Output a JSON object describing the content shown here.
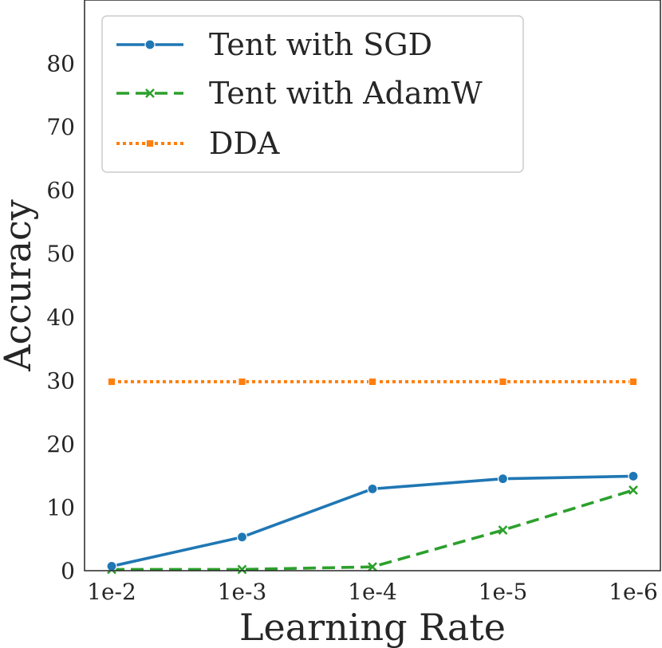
{
  "chart_data": {
    "type": "line",
    "title": "",
    "xlabel": "Learning Rate",
    "ylabel": "Accuracy",
    "categories": [
      "1e-2",
      "1e-3",
      "1e-4",
      "1e-5",
      "1e-6"
    ],
    "yticks": [
      "0",
      "10",
      "20",
      "30",
      "40",
      "50",
      "60",
      "70",
      "80"
    ],
    "ylim": [
      0,
      90
    ],
    "grid": false,
    "legend_position": "top-left",
    "series": [
      {
        "name": "Tent with SGD",
        "values": [
          0.7,
          5.3,
          12.9,
          14.5,
          14.9
        ],
        "color": "#1f77b4",
        "line_style": "solid",
        "marker": "circle"
      },
      {
        "name": "Tent with AdamW",
        "values": [
          0.2,
          0.2,
          0.6,
          6.4,
          12.7
        ],
        "color": "#2ca02c",
        "line_style": "dashed",
        "marker": "x"
      },
      {
        "name": "DDA",
        "values": [
          29.8,
          29.8,
          29.8,
          29.8,
          29.8
        ],
        "color": "#ff7f0e",
        "line_style": "dotted",
        "marker": "square"
      }
    ]
  }
}
